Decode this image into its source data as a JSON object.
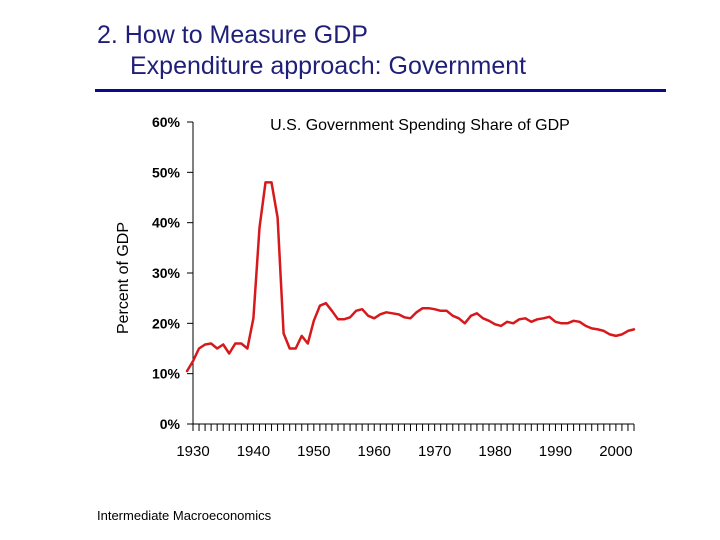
{
  "slide": {
    "title_line1": "2. How to Measure GDP",
    "title_line2": "Expenditure approach: Government",
    "footer": "Intermediate Macroeconomics"
  },
  "colors": {
    "title": "#1f1f7a",
    "rule": "#0a0a8a",
    "series": "#d7191c",
    "axis": "#000000"
  },
  "chart_data": {
    "type": "line",
    "title": "U.S. Government Spending Share of GDP",
    "xlabel": "",
    "ylabel": "Percent of GDP",
    "xlim": [
      1930,
      2003
    ],
    "ylim": [
      0,
      60
    ],
    "grid": false,
    "legend": "none",
    "xticks": [
      1930,
      1940,
      1950,
      1960,
      1970,
      1980,
      1990,
      2000
    ],
    "xtick_labels": [
      "1930",
      "1940",
      "1950",
      "1960",
      "1970",
      "1980",
      "1990",
      "2000"
    ],
    "yticks": [
      0,
      10,
      20,
      30,
      40,
      50,
      60
    ],
    "ytick_labels": [
      "0%",
      "10%",
      "20%",
      "30%",
      "40%",
      "50%",
      "60%"
    ],
    "series": [
      {
        "name": "",
        "x": [
          1929,
          1930,
          1931,
          1932,
          1933,
          1934,
          1935,
          1936,
          1937,
          1938,
          1939,
          1940,
          1941,
          1942,
          1943,
          1944,
          1945,
          1946,
          1947,
          1948,
          1949,
          1950,
          1951,
          1952,
          1953,
          1954,
          1955,
          1956,
          1957,
          1958,
          1959,
          1960,
          1961,
          1962,
          1963,
          1964,
          1965,
          1966,
          1967,
          1968,
          1969,
          1970,
          1971,
          1972,
          1973,
          1974,
          1975,
          1976,
          1977,
          1978,
          1979,
          1980,
          1981,
          1982,
          1983,
          1984,
          1985,
          1986,
          1987,
          1988,
          1989,
          1990,
          1991,
          1992,
          1993,
          1994,
          1995,
          1996,
          1997,
          1998,
          1999,
          2000,
          2001,
          2002,
          2003
        ],
        "values": [
          10.5,
          12.5,
          15.0,
          15.8,
          16.0,
          15.0,
          15.8,
          14.0,
          16.0,
          16.0,
          15.0,
          21.0,
          39.0,
          48.0,
          48.0,
          41.0,
          18.0,
          15.0,
          15.0,
          17.5,
          16.0,
          20.5,
          23.5,
          24.0,
          22.5,
          20.8,
          20.8,
          21.2,
          22.5,
          22.8,
          21.5,
          21.0,
          21.8,
          22.2,
          22.0,
          21.8,
          21.2,
          21.0,
          22.2,
          23.0,
          23.0,
          22.8,
          22.5,
          22.5,
          21.5,
          21.0,
          20.0,
          21.5,
          22.0,
          21.0,
          20.5,
          19.8,
          19.5,
          20.3,
          20.0,
          20.8,
          21.0,
          20.3,
          20.8,
          21.0,
          21.3,
          20.3,
          20.0,
          20.0,
          20.5,
          20.3,
          19.5,
          19.0,
          18.8,
          18.5,
          17.8,
          17.5,
          17.8,
          18.5,
          18.8
        ]
      }
    ]
  }
}
